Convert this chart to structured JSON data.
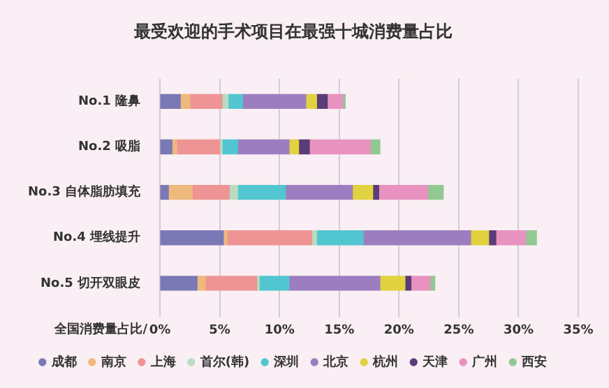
{
  "chart_data": {
    "type": "bar",
    "orientation": "horizontal",
    "stacked": true,
    "title": "最受欢迎的手术项目在最强十城消费量占比",
    "xlabel": "全国消费量占比/",
    "categories": [
      "No.1 隆鼻",
      "No.2 吸脂",
      "No.3 自体脂肪填充",
      "No.4 埋线提升",
      "No.5 切开双眼皮"
    ],
    "series": [
      {
        "name": "成都",
        "color": "#7b78b6",
        "values": [
          1.7,
          1.0,
          0.7,
          5.3,
          3.1
        ]
      },
      {
        "name": "南京",
        "color": "#eeb97c",
        "values": [
          0.8,
          0.4,
          2.0,
          0.3,
          0.7
        ]
      },
      {
        "name": "上海",
        "color": "#ee9494",
        "values": [
          2.7,
          3.6,
          3.1,
          7.1,
          4.3
        ]
      },
      {
        "name": "首尔(韩)",
        "color": "#b8dcc0",
        "values": [
          0.5,
          0.2,
          0.7,
          0.4,
          0.2
        ]
      },
      {
        "name": "深圳",
        "color": "#52c6d0",
        "values": [
          1.2,
          1.3,
          4.0,
          3.9,
          2.5
        ]
      },
      {
        "name": "北京",
        "color": "#9c7ec0",
        "values": [
          5.3,
          4.3,
          5.6,
          9.0,
          7.6
        ]
      },
      {
        "name": "杭州",
        "color": "#e2d240",
        "values": [
          0.9,
          0.8,
          1.7,
          1.5,
          2.1
        ]
      },
      {
        "name": "天津",
        "color": "#5a3c78",
        "values": [
          0.9,
          0.9,
          0.5,
          0.6,
          0.5
        ]
      },
      {
        "name": "广州",
        "color": "#e892c0",
        "values": [
          1.3,
          5.1,
          4.1,
          2.5,
          1.6
        ]
      },
      {
        "name": "西安",
        "color": "#92c892",
        "values": [
          0.2,
          0.8,
          1.3,
          0.9,
          0.4
        ]
      }
    ],
    "xlim": [
      0,
      35
    ],
    "xticks": [
      {
        "value": 0,
        "label": "0%"
      },
      {
        "value": 5,
        "label": "5%"
      },
      {
        "value": 10,
        "label": "10%"
      },
      {
        "value": 15,
        "label": "15%"
      },
      {
        "value": 20,
        "label": "20%"
      },
      {
        "value": 25,
        "label": "25%"
      },
      {
        "value": 30,
        "label": "30%"
      },
      {
        "value": 35,
        "label": "35%"
      }
    ],
    "grid": "x",
    "legend": "bottom"
  }
}
